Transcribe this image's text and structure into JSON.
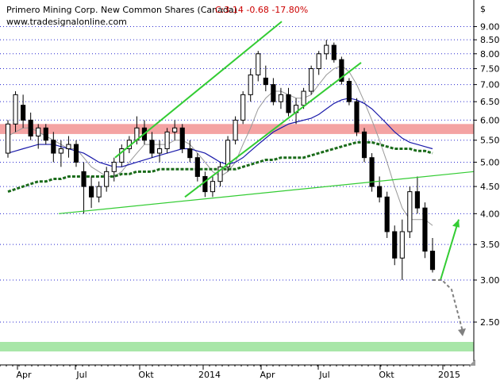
{
  "header": {
    "title": "Primero Mining Corp.   New Common Shares (Canada)",
    "quote": "C:3.14  -0.68  -17.80%",
    "site": "www.tradesignalonline.com"
  },
  "currency_symbol": "$",
  "colors": {
    "candle": "#000000",
    "ma_short": "#999999",
    "ma_mid": "#1a1aaa",
    "ma_long": "#1a6b1a",
    "trend": "#33cc33",
    "resistance_band": "#f4a3a3",
    "support_band": "#a8e6a8",
    "projection": "#808080",
    "quote_text": "#cc0000",
    "grid": "#2a2ad0"
  },
  "chart_data": {
    "type": "candlestick",
    "title": "Primero Mining Corp.   New Common Shares (Canada)",
    "price_scale": "log",
    "ylim": [
      2.35,
      9.3
    ],
    "y_ticks": [
      2.5,
      3.0,
      3.5,
      4.0,
      4.5,
      5.0,
      5.5,
      6.0,
      6.5,
      7.0,
      7.5,
      8.0,
      8.5,
      9.0
    ],
    "y_tick_labels": [
      "2.50",
      "3.00",
      "3.50",
      "4.00",
      "4.50",
      "5.00",
      "5.50",
      "6.00",
      "6.50",
      "7.00",
      "7.50",
      "8.00",
      "8.50",
      "9.00"
    ],
    "x_axis_labels": [
      "Apr",
      "Jul",
      "Okt",
      "2014",
      "Apr",
      "Jul",
      "Okt",
      "2015"
    ],
    "resistance_band": [
      5.65,
      5.9
    ],
    "support_band": [
      2.27,
      2.35
    ],
    "candles": [
      [
        5.2,
        6.0,
        5.1,
        5.9
      ],
      [
        5.9,
        6.8,
        5.7,
        6.7
      ],
      [
        6.4,
        6.7,
        5.8,
        6.0
      ],
      [
        6.0,
        6.2,
        5.5,
        5.6
      ],
      [
        5.6,
        5.9,
        5.3,
        5.8
      ],
      [
        5.8,
        5.9,
        5.4,
        5.5
      ],
      [
        5.5,
        5.7,
        5.0,
        5.2
      ],
      [
        5.2,
        5.5,
        4.9,
        5.3
      ],
      [
        5.3,
        5.6,
        5.1,
        5.4
      ],
      [
        5.4,
        5.5,
        4.9,
        5.0
      ],
      [
        4.8,
        5.0,
        4.0,
        4.5
      ],
      [
        4.5,
        4.7,
        4.1,
        4.3
      ],
      [
        4.3,
        4.6,
        4.2,
        4.5
      ],
      [
        4.5,
        4.9,
        4.4,
        4.8
      ],
      [
        4.8,
        5.1,
        4.6,
        5.0
      ],
      [
        5.0,
        5.4,
        4.9,
        5.3
      ],
      [
        5.3,
        5.6,
        5.2,
        5.5
      ],
      [
        5.5,
        6.1,
        5.4,
        5.8
      ],
      [
        5.8,
        6.0,
        5.4,
        5.5
      ],
      [
        5.5,
        5.7,
        5.1,
        5.2
      ],
      [
        5.2,
        5.5,
        5.0,
        5.3
      ],
      [
        5.3,
        5.8,
        5.2,
        5.7
      ],
      [
        5.7,
        6.0,
        5.5,
        5.8
      ],
      [
        5.8,
        5.9,
        5.2,
        5.3
      ],
      [
        5.3,
        5.5,
        5.0,
        5.1
      ],
      [
        5.1,
        5.2,
        4.6,
        4.7
      ],
      [
        4.7,
        4.8,
        4.3,
        4.4
      ],
      [
        4.4,
        4.7,
        4.3,
        4.6
      ],
      [
        4.6,
        5.0,
        4.5,
        4.9
      ],
      [
        4.9,
        5.6,
        4.8,
        5.5
      ],
      [
        5.5,
        6.1,
        5.4,
        6.0
      ],
      [
        6.0,
        6.8,
        5.9,
        6.7
      ],
      [
        6.7,
        7.5,
        6.5,
        7.3
      ],
      [
        7.3,
        8.1,
        7.1,
        8.0
      ],
      [
        7.2,
        7.6,
        6.8,
        7.0
      ],
      [
        7.0,
        7.2,
        6.4,
        6.5
      ],
      [
        6.5,
        6.9,
        6.3,
        6.7
      ],
      [
        6.7,
        6.9,
        6.1,
        6.2
      ],
      [
        6.2,
        6.6,
        5.9,
        6.4
      ],
      [
        6.4,
        6.9,
        6.3,
        6.8
      ],
      [
        6.8,
        7.6,
        6.7,
        7.5
      ],
      [
        7.5,
        8.1,
        7.3,
        8.0
      ],
      [
        8.0,
        8.5,
        7.8,
        8.3
      ],
      [
        8.3,
        8.4,
        7.7,
        7.8
      ],
      [
        7.8,
        7.9,
        7.0,
        7.1
      ],
      [
        7.1,
        7.2,
        6.4,
        6.5
      ],
      [
        6.5,
        6.6,
        5.6,
        5.7
      ],
      [
        5.7,
        5.8,
        5.0,
        5.1
      ],
      [
        5.1,
        5.2,
        4.4,
        4.5
      ],
      [
        4.5,
        4.7,
        4.2,
        4.3
      ],
      [
        4.3,
        4.4,
        3.6,
        3.7
      ],
      [
        3.7,
        3.8,
        3.2,
        3.3
      ],
      [
        3.3,
        3.9,
        3.0,
        3.7
      ],
      [
        3.7,
        4.5,
        3.6,
        4.4
      ],
      [
        4.4,
        4.7,
        4.0,
        4.1
      ],
      [
        4.1,
        4.2,
        3.3,
        3.4
      ],
      [
        3.4,
        3.6,
        3.1,
        3.14
      ]
    ],
    "series": [
      {
        "values": [
          5.6,
          5.7,
          5.8,
          5.8,
          5.7,
          5.6,
          5.5,
          5.4,
          5.3,
          5.3,
          5.1,
          4.9,
          4.8,
          4.7,
          4.7,
          4.8,
          5.0,
          5.2,
          5.4,
          5.4,
          5.4,
          5.4,
          5.5,
          5.5,
          5.4,
          5.2,
          5.0,
          4.8,
          4.7,
          4.8,
          5.0,
          5.4,
          5.8,
          6.3,
          6.6,
          6.8,
          6.8,
          6.7,
          6.6,
          6.6,
          6.7,
          7.0,
          7.3,
          7.5,
          7.6,
          7.4,
          7.0,
          6.5,
          6.0,
          5.5,
          5.0,
          4.5,
          4.1,
          3.9,
          3.9,
          3.9,
          3.8
        ]
      },
      {
        "values": [
          5.2,
          5.25,
          5.3,
          5.35,
          5.4,
          5.4,
          5.4,
          5.35,
          5.3,
          5.25,
          5.2,
          5.1,
          5.0,
          4.95,
          4.9,
          4.9,
          4.95,
          5.0,
          5.05,
          5.1,
          5.15,
          5.2,
          5.25,
          5.3,
          5.3,
          5.25,
          5.2,
          5.1,
          5.0,
          4.95,
          5.0,
          5.1,
          5.25,
          5.4,
          5.55,
          5.7,
          5.8,
          5.9,
          5.95,
          6.0,
          6.05,
          6.15,
          6.3,
          6.45,
          6.55,
          6.6,
          6.55,
          6.45,
          6.3,
          6.1,
          5.9,
          5.7,
          5.55,
          5.45,
          5.4,
          5.35,
          5.3
        ]
      },
      {
        "values": [
          4.4,
          4.45,
          4.5,
          4.55,
          4.6,
          4.6,
          4.65,
          4.65,
          4.7,
          4.7,
          4.7,
          4.7,
          4.7,
          4.7,
          4.7,
          4.75,
          4.75,
          4.8,
          4.8,
          4.8,
          4.85,
          4.85,
          4.85,
          4.85,
          4.85,
          4.85,
          4.85,
          4.85,
          4.85,
          4.85,
          4.85,
          4.9,
          4.95,
          5.0,
          5.05,
          5.05,
          5.1,
          5.1,
          5.1,
          5.1,
          5.15,
          5.2,
          5.25,
          5.3,
          5.35,
          5.4,
          5.45,
          5.45,
          5.45,
          5.4,
          5.35,
          5.3,
          5.3,
          5.3,
          5.25,
          5.25,
          5.2
        ]
      }
    ],
    "trendlines": [
      {
        "from": [
          "2013-06",
          4.0
        ],
        "to": [
          "2014-12",
          4.8
        ]
      },
      {
        "from": [
          "2013-07",
          5.1
        ],
        "to": [
          "2014-02",
          9.2
        ]
      },
      {
        "from": [
          "2013-11",
          4.3
        ],
        "to": [
          "2014-07",
          7.7
        ]
      },
      {
        "from": [
          "2014-10",
          3.0
        ],
        "to": [
          "2014-12",
          3.9
        ]
      }
    ],
    "projection": {
      "from": 3.0,
      "to": 2.35
    }
  }
}
